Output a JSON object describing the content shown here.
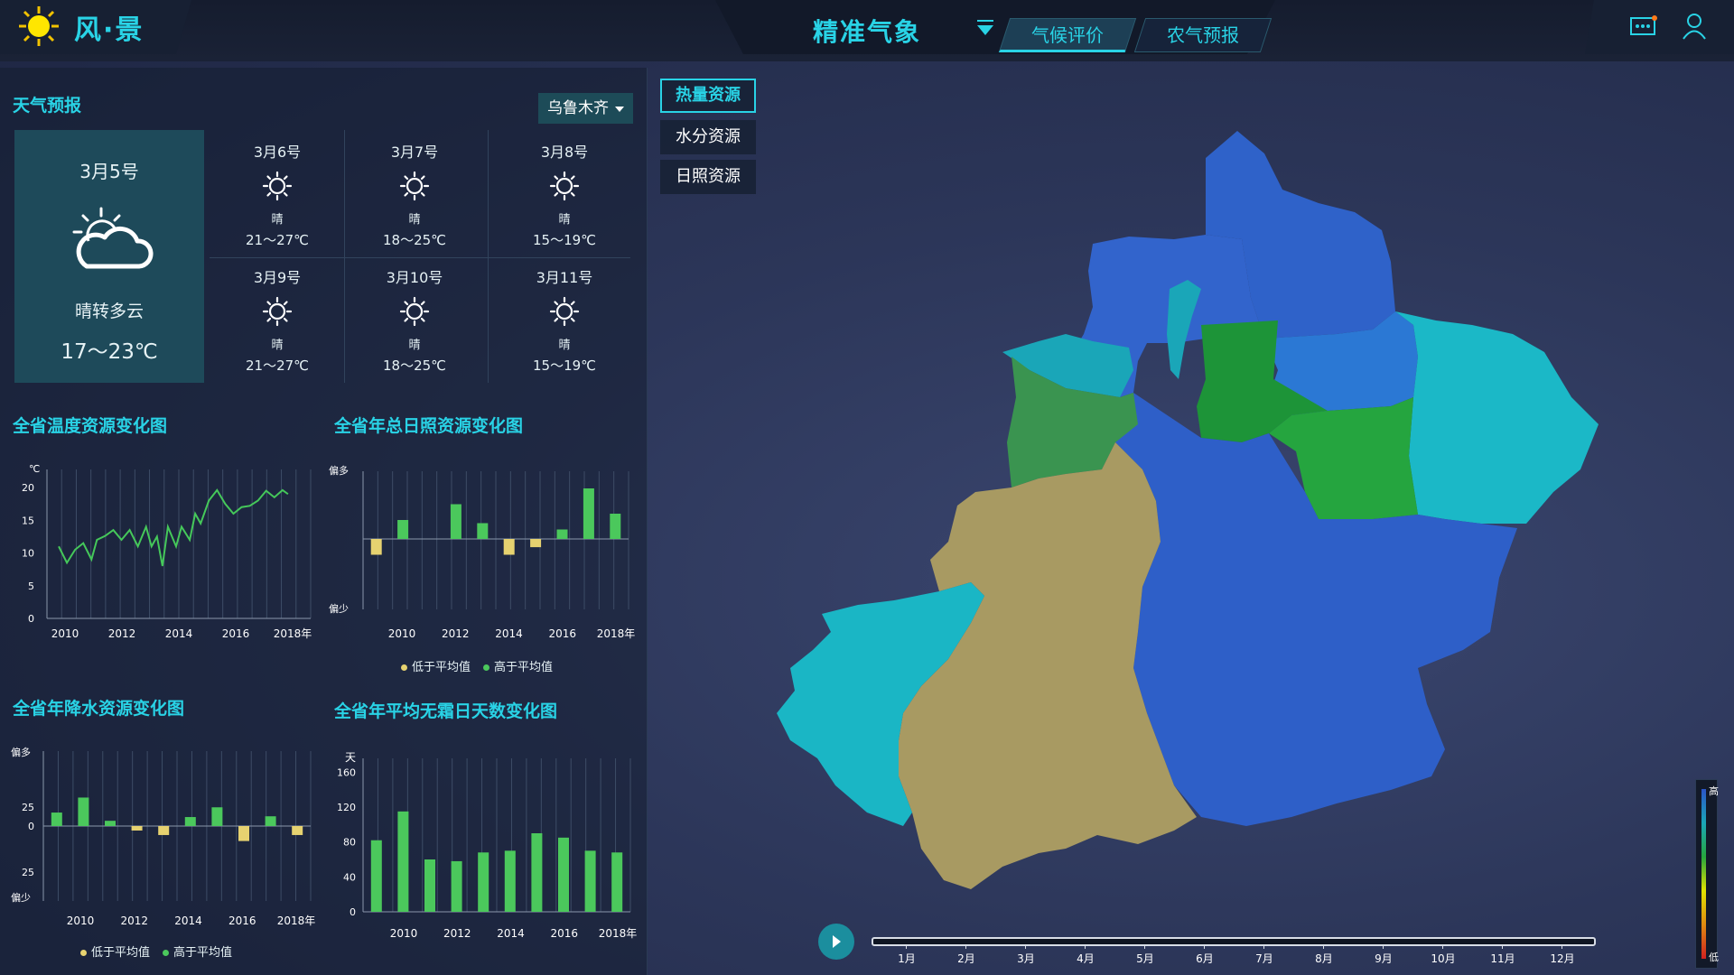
{
  "header": {
    "logo_text": "风·景",
    "title": "精准气象",
    "tabs": [
      {
        "label": "气候评价",
        "active": true
      },
      {
        "label": "农气预报",
        "active": false
      }
    ],
    "icons": [
      "message-icon",
      "user-icon"
    ]
  },
  "weather": {
    "section_title": "天气预报",
    "city": "乌鲁木齐",
    "today": {
      "date": "3月5号",
      "icon": "partly-cloudy-icon",
      "condition": "晴转多云",
      "temp": "17～23℃"
    },
    "forecast": [
      {
        "date": "3月6号",
        "icon": "sun-icon",
        "condition": "晴",
        "temp": "21～27℃"
      },
      {
        "date": "3月7号",
        "icon": "sun-icon",
        "condition": "晴",
        "temp": "18～25℃"
      },
      {
        "date": "3月8号",
        "icon": "sun-icon",
        "condition": "晴",
        "temp": "15～19℃"
      },
      {
        "date": "3月9号",
        "icon": "sun-icon",
        "condition": "晴",
        "temp": "21～27℃"
      },
      {
        "date": "3月10号",
        "icon": "sun-icon",
        "condition": "晴",
        "temp": "18～25℃"
      },
      {
        "date": "3月11号",
        "icon": "sun-icon",
        "condition": "晴",
        "temp": "15～19℃"
      }
    ]
  },
  "chart_data": [
    {
      "id": "temp",
      "type": "line",
      "title": "全省温度资源变化图",
      "ylabel": "℃",
      "ylim": [
        0,
        20
      ],
      "yticks": [
        0,
        5,
        10,
        15,
        20
      ],
      "xlim": [
        2009.5,
        2018.5
      ],
      "xticks": [
        "2010",
        "2012",
        "2014",
        "2016",
        "2018年"
      ],
      "x": [
        2009.6,
        2009.9,
        2010.2,
        2010.5,
        2010.8,
        2011.0,
        2011.3,
        2011.6,
        2011.9,
        2012.2,
        2012.5,
        2012.8,
        2013.0,
        2013.2,
        2013.4,
        2013.6,
        2013.9,
        2014.1,
        2014.4,
        2014.6,
        2014.8,
        2015.1,
        2015.4,
        2015.7,
        2016.0,
        2016.3,
        2016.6,
        2016.9,
        2017.2,
        2017.5,
        2017.8,
        2018.0
      ],
      "y": [
        11,
        8.5,
        10.5,
        11.5,
        9,
        12,
        12.6,
        13.5,
        12,
        13.5,
        11,
        14,
        11,
        12.5,
        8,
        14,
        11,
        14,
        12,
        16,
        14.5,
        18,
        19.6,
        17.5,
        16,
        17,
        17.2,
        18,
        19.5,
        18.5,
        19.6,
        19
      ],
      "color": "#45c85a"
    },
    {
      "id": "sun",
      "type": "bar",
      "title": "全省年总日照资源变化图",
      "ytop_label": "偏多",
      "ybottom_label": "偏少",
      "ylim": [
        -10,
        10
      ],
      "xticks": [
        "2010",
        "2012",
        "2014",
        "2016",
        "2018年"
      ],
      "values": [
        -2.5,
        3,
        0,
        5.5,
        2.5,
        -2.5,
        -1.3,
        1.5,
        8,
        4
      ],
      "legend": [
        {
          "name": "低于平均值",
          "color": "#e6d270"
        },
        {
          "name": "高于平均值",
          "color": "#4bc85c"
        }
      ]
    },
    {
      "id": "precip",
      "type": "bar",
      "title": "全省年降水资源变化图",
      "ytop_label": "偏多",
      "ybottom_label": "偏少",
      "yticks": [
        "25",
        "0",
        "25"
      ],
      "ylim": [
        -50,
        50
      ],
      "xticks": [
        "2010",
        "2012",
        "2014",
        "2016",
        "2018年"
      ],
      "values": [
        18,
        38,
        7,
        -6,
        -12,
        12,
        25,
        -20,
        13,
        -12
      ],
      "legend": [
        {
          "name": "低于平均值",
          "color": "#e6d270"
        },
        {
          "name": "高于平均值",
          "color": "#4bc85c"
        }
      ]
    },
    {
      "id": "frost",
      "type": "bar",
      "title": "全省年平均无霜日天数变化图",
      "ylabel": "天",
      "ylim": [
        0,
        180
      ],
      "yticks": [
        0,
        40,
        80,
        120,
        160
      ],
      "xticks": [
        "2010",
        "2012",
        "2014",
        "2016",
        "2018年"
      ],
      "values": [
        82,
        115,
        60,
        58,
        68,
        70,
        90,
        85,
        70,
        68
      ],
      "color": "#4bc85c"
    }
  ],
  "map": {
    "resource_buttons": [
      {
        "label": "热量资源",
        "active": true
      },
      {
        "label": "水分资源",
        "active": false
      },
      {
        "label": "日照资源",
        "active": false
      }
    ],
    "legend_high": "高",
    "legend_low": "低",
    "months": [
      "1月",
      "2月",
      "3月",
      "4月",
      "5月",
      "6月",
      "7月",
      "8月",
      "9月",
      "10月",
      "11月",
      "12月"
    ]
  }
}
